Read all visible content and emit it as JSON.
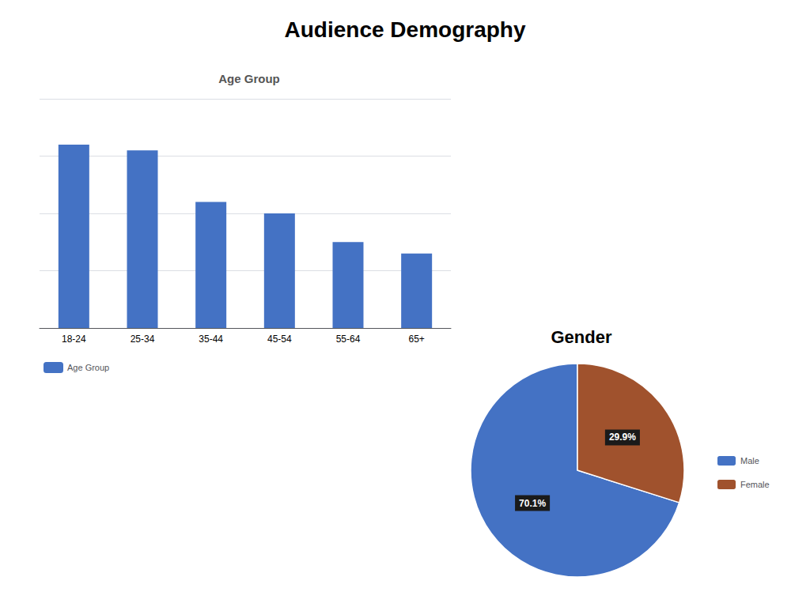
{
  "title": "Audience Demography",
  "chart_data": [
    {
      "type": "bar",
      "title": "Age Group",
      "categories": [
        "18-24",
        "25-34",
        "35-44",
        "45-54",
        "55-64",
        "65+"
      ],
      "series": [
        {
          "name": "Age Group",
          "color": "#4472C4",
          "values": [
            32,
            31,
            22,
            20,
            15,
            13
          ]
        }
      ],
      "ylim": [
        0,
        40
      ],
      "yticks": [
        0,
        10,
        20,
        30,
        40
      ],
      "grid": true,
      "tick_labels": "x",
      "legend": "lower left"
    },
    {
      "type": "pie",
      "title": "Gender",
      "categories": [
        "Male",
        "Female"
      ],
      "values": [
        70.1,
        29.9
      ],
      "value_labels": [
        "70.1%",
        "29.9%"
      ],
      "colors": [
        "#4472C4",
        "#A0522D"
      ],
      "data_labels": true,
      "legend": "right"
    }
  ]
}
